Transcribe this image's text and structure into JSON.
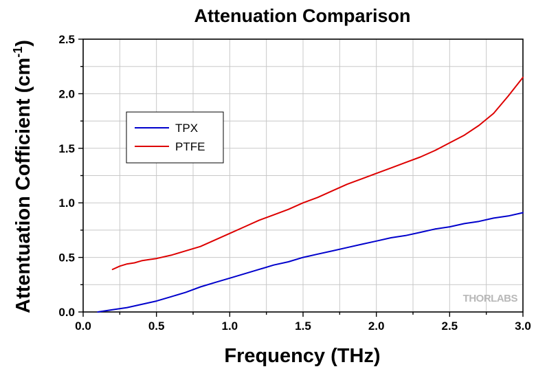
{
  "chart_data": {
    "type": "line",
    "title": "Attenuation Comparison",
    "xlabel": "Frequency (THz)",
    "ylabel_main": "Attentuation Cofficient (cm",
    "ylabel_sup": "-1",
    "ylabel_close": ")",
    "xlim": [
      0.0,
      3.0
    ],
    "ylim": [
      0.0,
      2.5
    ],
    "xticks": [
      "0.0",
      "0.5",
      "1.0",
      "1.5",
      "2.0",
      "2.5",
      "3.0"
    ],
    "yticks": [
      "0.0",
      "0.5",
      "1.0",
      "1.5",
      "2.0",
      "2.5"
    ],
    "grid": true,
    "legend_position": "upper-left",
    "series": [
      {
        "name": "TPX",
        "color": "#0000cc",
        "x": [
          0.1,
          0.2,
          0.3,
          0.4,
          0.5,
          0.6,
          0.7,
          0.8,
          0.9,
          1.0,
          1.1,
          1.2,
          1.3,
          1.4,
          1.5,
          1.6,
          1.7,
          1.8,
          1.9,
          2.0,
          2.1,
          2.2,
          2.3,
          2.4,
          2.5,
          2.6,
          2.7,
          2.8,
          2.9,
          3.0
        ],
        "y": [
          0.0,
          0.02,
          0.04,
          0.07,
          0.1,
          0.14,
          0.18,
          0.23,
          0.27,
          0.31,
          0.35,
          0.39,
          0.43,
          0.46,
          0.5,
          0.53,
          0.56,
          0.59,
          0.62,
          0.65,
          0.68,
          0.7,
          0.73,
          0.76,
          0.78,
          0.81,
          0.83,
          0.86,
          0.88,
          0.91
        ]
      },
      {
        "name": "PTFE",
        "color": "#dd0000",
        "x": [
          0.2,
          0.25,
          0.3,
          0.35,
          0.4,
          0.45,
          0.5,
          0.6,
          0.7,
          0.8,
          0.9,
          1.0,
          1.1,
          1.2,
          1.3,
          1.4,
          1.5,
          1.6,
          1.7,
          1.8,
          1.9,
          2.0,
          2.1,
          2.2,
          2.3,
          2.4,
          2.5,
          2.6,
          2.7,
          2.8,
          2.9,
          3.0
        ],
        "y": [
          0.39,
          0.42,
          0.44,
          0.45,
          0.47,
          0.48,
          0.49,
          0.52,
          0.56,
          0.6,
          0.66,
          0.72,
          0.78,
          0.84,
          0.89,
          0.94,
          1.0,
          1.05,
          1.11,
          1.17,
          1.22,
          1.27,
          1.32,
          1.37,
          1.42,
          1.48,
          1.55,
          1.62,
          1.71,
          1.82,
          1.98,
          2.15
        ]
      }
    ]
  },
  "watermark": "THORLABS"
}
